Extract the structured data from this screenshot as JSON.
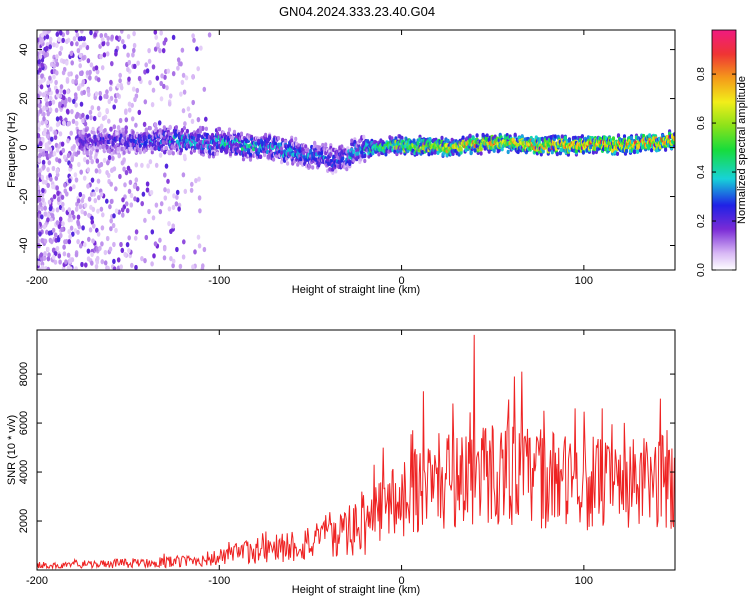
{
  "figure_title": "GN04.2024.333.23.40.G04",
  "colors": {
    "line": "#ee2222",
    "axis": "#000000",
    "spectrum_low": "#7a2bd6",
    "spectrum_mid": "#17d2d8",
    "spectrum_high": "#e8202e"
  },
  "chart_data": [
    {
      "type": "heatmap",
      "title": "GN04.2024.333.23.40.G04",
      "xlabel": "Height of straight line (km)",
      "ylabel": "Frequency (Hz)",
      "xlim": [
        -200,
        150
      ],
      "ylim": [
        -50,
        48
      ],
      "xticks": [
        "-200",
        "-100",
        "0",
        "100"
      ],
      "yticks": [
        "40",
        "20",
        "0",
        "-20",
        "-40"
      ],
      "colorbar": {
        "label": "Normalized spectral amplitude",
        "range": [
          0,
          0.98
        ],
        "ticks": [
          "0.0",
          "0.2",
          "0.4",
          "0.6",
          "0.8"
        ]
      },
      "ridge": {
        "description_points_x": [
          -175,
          -150,
          -125,
          -100,
          -75,
          -50,
          -35,
          -20,
          0,
          25,
          50,
          75,
          100,
          125,
          150
        ],
        "frequency_center_hz": [
          3,
          2,
          3,
          2,
          0,
          -3,
          -5,
          0,
          1,
          0,
          2,
          1,
          1,
          1,
          3
        ],
        "amplitude": [
          0.25,
          0.3,
          0.4,
          0.45,
          0.45,
          0.4,
          0.35,
          0.5,
          0.7,
          0.8,
          0.85,
          0.9,
          0.9,
          0.95,
          0.95
        ]
      }
    },
    {
      "type": "line",
      "xlabel": "Height of straight line (km)",
      "ylabel": "SNR (10 * v/v)",
      "xlim": [
        -200,
        150
      ],
      "ylim": [
        0,
        9800
      ],
      "xticks": [
        "-200",
        "-100",
        "0",
        "100"
      ],
      "yticks": [
        "2000",
        "4000",
        "6000",
        "8000"
      ],
      "series": [
        {
          "x": [
            -200,
            -180,
            -160,
            -140,
            -120,
            -100,
            -90,
            -80,
            -70,
            -60,
            -50,
            -40,
            -30,
            -20,
            -10,
            0,
            10,
            20,
            30,
            40,
            50,
            60,
            70,
            80,
            90,
            100,
            110,
            120,
            130,
            140,
            150
          ],
          "values": [
            150,
            200,
            250,
            300,
            350,
            500,
            650,
            800,
            900,
            1000,
            1100,
            1200,
            1500,
            1900,
            2500,
            3000,
            3400,
            3600,
            3800,
            3900,
            4000,
            3900,
            3800,
            3700,
            3600,
            3600,
            3500,
            3400,
            3500,
            3600,
            3600
          ],
          "peaks": [
            [
              -40,
              1900
            ],
            [
              -22,
              3200
            ],
            [
              -15,
              4300
            ],
            [
              -10,
              5000
            ],
            [
              12,
              7300
            ],
            [
              28,
              6800
            ],
            [
              40,
              9600
            ],
            [
              62,
              7900
            ],
            [
              66,
              8100
            ],
            [
              78,
              6500
            ],
            [
              95,
              6600
            ],
            [
              110,
              6600
            ],
            [
              142,
              7000
            ]
          ]
        }
      ]
    }
  ]
}
